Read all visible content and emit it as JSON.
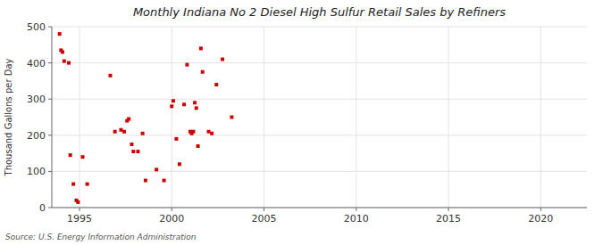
{
  "chart_data": {
    "type": "scatter",
    "title": "Monthly Indiana No 2 Diesel High Sulfur Retail Sales by Refiners",
    "y_label": "Thousand Gallons per Day",
    "annotations": [
      "Source: U.S. Energy Information Administration"
    ],
    "color": "#cc0000",
    "marker": "square",
    "grid": true,
    "xlim": [
      1993.5,
      2022.5
    ],
    "ylim": [
      0,
      500
    ],
    "xticks": [
      1995,
      2000,
      2005,
      2010,
      2015,
      2020
    ],
    "yticks": [
      0,
      100,
      200,
      300,
      400,
      500
    ],
    "x": [
      1993.92,
      1994.0,
      1994.08,
      1994.17,
      1994.42,
      1994.5,
      1994.67,
      1994.83,
      1994.92,
      1995.17,
      1995.42,
      1996.67,
      1996.92,
      1997.25,
      1997.42,
      1997.58,
      1997.67,
      1997.83,
      1997.92,
      1998.17,
      1998.42,
      1998.58,
      1999.17,
      1999.58,
      2000.0,
      2000.08,
      2000.25,
      2000.42,
      2000.67,
      2000.83,
      2001.0,
      2001.08,
      2001.17,
      2001.25,
      2001.33,
      2001.42,
      2001.58,
      2001.67,
      2002.0,
      2002.17,
      2002.42,
      2002.75,
      2003.25
    ],
    "values": [
      480,
      435,
      430,
      405,
      400,
      145,
      65,
      20,
      15,
      140,
      65,
      365,
      210,
      215,
      210,
      240,
      245,
      175,
      155,
      155,
      205,
      75,
      105,
      75,
      280,
      295,
      190,
      120,
      285,
      395,
      210,
      205,
      210,
      290,
      275,
      170,
      440,
      375,
      210,
      205,
      340,
      410,
      250
    ]
  }
}
